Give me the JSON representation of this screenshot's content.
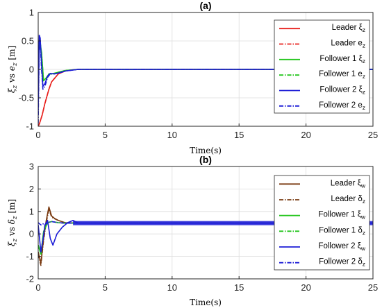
{
  "chart_data": [
    {
      "type": "line",
      "title": "(a)",
      "xlabel": "Time(s)",
      "ylabel": "ξ_z vs e_z [m]",
      "ylabel_main_a": "ξ",
      "ylabel_sub_a": "z",
      "ylabel_mid": " vs ",
      "ylabel_main_b": "e",
      "ylabel_sub_b": "z",
      "ylabel_unit": " [m]",
      "xlim": [
        0,
        25
      ],
      "ylim": [
        -1,
        1
      ],
      "xticks": [
        0,
        5,
        10,
        15,
        20,
        25
      ],
      "yticks": [
        -1,
        -0.5,
        0,
        0.5,
        1
      ],
      "grid": true,
      "legend_position": "top-right",
      "series": [
        {
          "name": "Leader ξz",
          "label_main": "Leader ξ",
          "label_sub": "z",
          "color": "#e8201c",
          "dash": "solid",
          "x": [
            0,
            0.1,
            0.3,
            0.5,
            0.8,
            1.0,
            1.5,
            2.0,
            2.5,
            3.0,
            4.0,
            25
          ],
          "y": [
            -1,
            -0.95,
            -0.8,
            -0.6,
            -0.35,
            -0.22,
            -0.08,
            -0.03,
            -0.01,
            0,
            0,
            0
          ]
        },
        {
          "name": "Leader ez",
          "label_main": "Leader e",
          "label_sub": "z",
          "color": "#e8201c",
          "dash": "dashdot",
          "x": [
            0,
            0.1,
            0.3,
            0.5,
            0.8,
            1.0,
            1.5,
            2.0,
            2.5,
            3.0,
            4.0,
            25
          ],
          "y": [
            -1,
            -0.95,
            -0.8,
            -0.6,
            -0.35,
            -0.22,
            -0.08,
            -0.03,
            -0.01,
            0,
            0,
            0
          ]
        },
        {
          "name": "Follower 1 ξz",
          "label_main": "Follower 1 ξ",
          "label_sub": "z",
          "color": "#22c51b",
          "dash": "solid",
          "x": [
            0,
            0.1,
            0.25,
            0.4,
            0.6,
            0.8,
            1.0,
            1.5,
            2.0,
            3.0,
            25
          ],
          "y": [
            -0.2,
            0.55,
            0.3,
            -0.2,
            -0.15,
            -0.08,
            -0.08,
            -0.05,
            -0.02,
            0,
            0
          ]
        },
        {
          "name": "Follower 1 ez",
          "label_main": "Follower 1 e",
          "label_sub": "z",
          "color": "#22c51b",
          "dash": "dashdot",
          "x": [
            0,
            0.1,
            0.25,
            0.4,
            0.6,
            0.8,
            1.0,
            1.5,
            2.0,
            3.0,
            25
          ],
          "y": [
            -0.2,
            0.55,
            0.3,
            -0.2,
            -0.15,
            -0.08,
            -0.08,
            -0.05,
            -0.02,
            0,
            0
          ]
        },
        {
          "name": "Follower 2 ξz",
          "label_main": "Follower 2 ξ",
          "label_sub": "z",
          "color": "#1b1bd6",
          "dash": "solid",
          "x": [
            0,
            0.08,
            0.15,
            0.25,
            0.35,
            0.5,
            0.7,
            0.9,
            1.2,
            1.6,
            2.0,
            3.0,
            25
          ],
          "y": [
            -0.75,
            0.6,
            0.55,
            0.1,
            -0.3,
            -0.25,
            -0.12,
            -0.07,
            -0.08,
            -0.06,
            -0.03,
            0,
            0
          ]
        },
        {
          "name": "Follower 2 ez",
          "label_main": "Follower 2 e",
          "label_sub": "z",
          "color": "#1b1bd6",
          "dash": "dashdot",
          "x": [
            0,
            0.08,
            0.15,
            0.25,
            0.35,
            0.5,
            0.7,
            0.9,
            1.2,
            1.6,
            2.0,
            3.0,
            25
          ],
          "y": [
            -0.95,
            0.5,
            0.45,
            0.0,
            -0.35,
            -0.3,
            -0.14,
            -0.08,
            -0.08,
            -0.06,
            -0.03,
            0,
            0
          ]
        }
      ]
    },
    {
      "type": "line",
      "title": "(b)",
      "xlabel": "Time(s)",
      "ylabel": "ξ_z vs δ_z [m]",
      "ylabel_main_a": "ξ",
      "ylabel_sub_a": "z",
      "ylabel_mid": " vs ",
      "ylabel_main_b": "δ",
      "ylabel_sub_b": "z",
      "ylabel_unit": " [m]",
      "xlim": [
        0,
        25
      ],
      "ylim": [
        -2,
        3
      ],
      "xticks": [
        0,
        5,
        10,
        15,
        20,
        25
      ],
      "yticks": [
        -2,
        -1,
        0,
        1,
        2,
        3
      ],
      "grid": true,
      "legend_position": "top-right",
      "series": [
        {
          "name": "Leader ξw",
          "label_main": "Leader ξ",
          "label_sub": "w",
          "color": "#7a3b12",
          "dash": "solid",
          "x": [
            0,
            0.2,
            0.4,
            0.6,
            0.8,
            1.0,
            1.2,
            1.5,
            2.0,
            3.0,
            25
          ],
          "y": [
            -0.8,
            -1.3,
            -0.2,
            0.6,
            1.2,
            0.8,
            0.7,
            0.6,
            0.5,
            0.48,
            0.48
          ]
        },
        {
          "name": "Leader δz",
          "label_main": "Leader δ",
          "label_sub": "z",
          "color": "#7a3b12",
          "dash": "dashdot",
          "x": [
            0,
            0.2,
            0.4,
            0.6,
            0.8,
            1.0,
            1.2,
            1.5,
            2.0,
            3.0,
            25
          ],
          "y": [
            -0.9,
            -1.4,
            -0.3,
            0.5,
            1.1,
            0.75,
            0.68,
            0.6,
            0.5,
            0.48,
            0.48
          ]
        },
        {
          "name": "Follower 1 ξw",
          "label_main": "Follower 1 ξ",
          "label_sub": "w",
          "color": "#22c51b",
          "dash": "solid",
          "x": [
            0,
            0.2,
            0.4,
            0.7,
            1.0,
            1.5,
            2.0,
            3.0,
            25
          ],
          "y": [
            -0.5,
            -0.9,
            0.1,
            0.5,
            0.55,
            0.5,
            0.48,
            0.48,
            0.48
          ]
        },
        {
          "name": "Follower 1 δz",
          "label_main": "Follower 1 δ",
          "label_sub": "z",
          "color": "#22c51b",
          "dash": "dashdot",
          "x": [
            0,
            0.2,
            0.4,
            0.7,
            1.0,
            1.5,
            2.0,
            3.0,
            25
          ],
          "y": [
            -0.5,
            -0.9,
            0.1,
            0.5,
            0.55,
            0.5,
            0.48,
            0.48,
            0.48
          ]
        },
        {
          "name": "Follower 2 ξw",
          "label_main": "Follower 2 ξ",
          "label_sub": "w",
          "color": "#1b1bd6",
          "dash": "solid",
          "x": [
            0,
            0.2,
            0.35,
            0.5,
            0.7,
            0.9,
            1.1,
            1.4,
            1.8,
            2.2,
            2.6,
            3.0,
            25
          ],
          "y": [
            0.4,
            -0.8,
            -0.3,
            0.4,
            0.6,
            -0.2,
            -0.5,
            0.0,
            0.3,
            0.5,
            0.6,
            0.48,
            0.48
          ]
        },
        {
          "name": "Follower 2 δz",
          "label_main": "Follower 2 δ",
          "label_sub": "z",
          "color": "#1b1bd6",
          "dash": "dashdot",
          "x": [
            0,
            0.2,
            0.35,
            0.5,
            0.7,
            1.0,
            1.5,
            2.0,
            3.0,
            25
          ],
          "y": [
            0.5,
            0.4,
            0.45,
            0.4,
            0.5,
            0.55,
            0.5,
            0.48,
            0.48,
            0.48
          ]
        }
      ]
    }
  ]
}
